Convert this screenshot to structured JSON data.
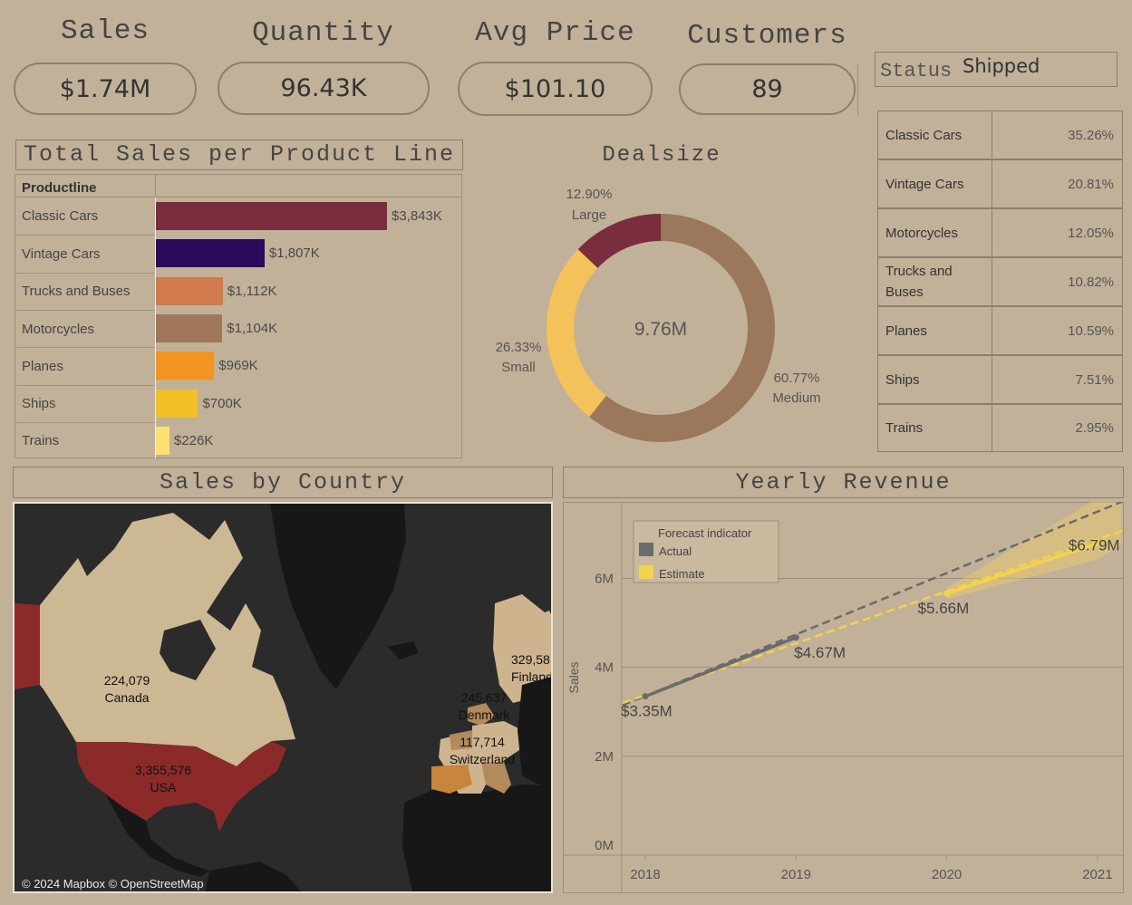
{
  "kpis": [
    {
      "title": "Sales",
      "value": "$1.74M"
    },
    {
      "title": "Quantity",
      "value": "96.43K"
    },
    {
      "title": "Avg Price",
      "value": "$101.10"
    },
    {
      "title": "Customers",
      "value": "89"
    }
  ],
  "status": {
    "label": "Status",
    "value": "Shipped"
  },
  "product_share": [
    {
      "name": "Classic Cars",
      "pct": "35.26%"
    },
    {
      "name": "Vintage Cars",
      "pct": "20.81%"
    },
    {
      "name": "Motorcycles",
      "pct": "12.05%"
    },
    {
      "name": "Trucks and Buses",
      "pct": "10.82%"
    },
    {
      "name": "Planes",
      "pct": "10.59%"
    },
    {
      "name": "Ships",
      "pct": "7.51%"
    },
    {
      "name": "Trains",
      "pct": "2.95%"
    }
  ],
  "map": {
    "title": "Sales by Country",
    "attribution": "© 2024 Mapbox © OpenStreetMap",
    "labels": [
      {
        "value": "224,079",
        "name": "Canada"
      },
      {
        "value": "3,355,576",
        "name": "USA"
      },
      {
        "value": "245,637",
        "name": "Denmark"
      },
      {
        "value": "117,714",
        "name": "Switzerland"
      },
      {
        "value": "329,58",
        "name": "Finland"
      }
    ],
    "colors": {
      "ocean": "#2a2a2a",
      "land": "#171717",
      "usa": "#8c2a2a",
      "canada": "#cdb894",
      "europe_light": "#cdb48e",
      "europe_mid": "#b28a5c",
      "europe_dark": "#c9853c"
    }
  },
  "chart_data": [
    {
      "type": "bar",
      "title": "Total Sales per Product Line",
      "column_header": "Productline",
      "categories": [
        "Classic Cars",
        "Vintage Cars",
        "Trucks and Buses",
        "Motorcycles",
        "Planes",
        "Ships",
        "Trains"
      ],
      "values": [
        3843,
        1807,
        1112,
        1104,
        969,
        700,
        226
      ],
      "value_labels": [
        "$3,843K",
        "$1,807K",
        "$1,112K",
        "$1,104K",
        "$969K",
        "$700K",
        "$226K"
      ],
      "colors": [
        "#7a2d3e",
        "#2b0a5e",
        "#d17b4c",
        "#a0775a",
        "#f29420",
        "#f0c024",
        "#fde172"
      ],
      "xlim": [
        0,
        4000
      ]
    },
    {
      "type": "pie",
      "title": "Dealsize",
      "center_label": "9.76M",
      "slices": [
        {
          "name": "Medium",
          "value": 60.77,
          "label": "60.77%",
          "color": "#9b775b"
        },
        {
          "name": "Small",
          "value": 26.33,
          "label": "26.33%",
          "color": "#f5c15a"
        },
        {
          "name": "Large",
          "value": 12.9,
          "label": "12.90%",
          "color": "#7a2d3e"
        }
      ]
    },
    {
      "type": "line",
      "title": "Yearly Revenue",
      "ylabel": "Sales",
      "x": [
        2018,
        2019,
        2020,
        2021
      ],
      "ylim": [
        0,
        7300000
      ],
      "yticks": [
        0,
        2000000,
        4000000,
        6000000
      ],
      "ytick_labels": [
        "0M",
        "2M",
        "4M",
        "6M"
      ],
      "legend": {
        "title": "Forecast indicator",
        "entries": [
          "Actual",
          "Estimate"
        ]
      },
      "series": [
        {
          "name": "Actual",
          "x": [
            2018,
            2019
          ],
          "values": [
            3350000,
            4670000
          ],
          "color": "#6b6b6b"
        },
        {
          "name": "Estimate",
          "x": [
            2020,
            2021
          ],
          "values": [
            5660000,
            6790000
          ],
          "color": "#f5d24c"
        }
      ],
      "point_labels": [
        "$3.35M",
        "$4.67M",
        "$5.66M",
        "$6.79M"
      ],
      "trend_lines": [
        {
          "name": "Actual",
          "color": "#6b6b6b",
          "start": [
            2017.85,
            3150000
          ],
          "end": [
            2021,
            7450000
          ]
        },
        {
          "name": "Estimate",
          "color": "#f5d24c",
          "start": [
            2017.85,
            3200000
          ],
          "end": [
            2021,
            6790000
          ]
        }
      ]
    }
  ]
}
